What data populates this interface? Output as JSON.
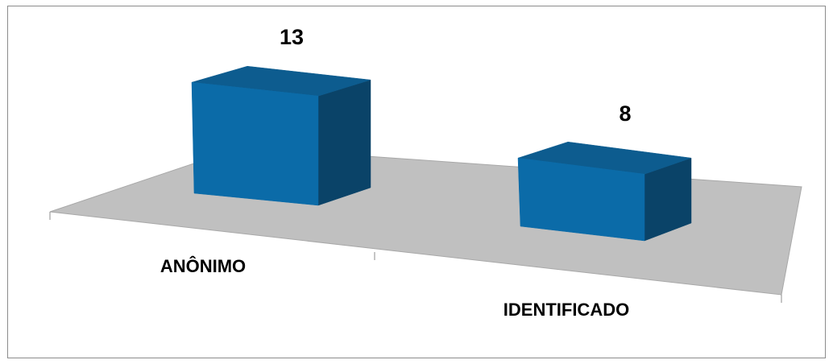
{
  "chart_data": {
    "type": "bar",
    "style": "3d-column",
    "categories": [
      "ANÔNIMO",
      "IDENTIFICADO"
    ],
    "values": [
      13,
      8
    ],
    "title": "",
    "xlabel": "",
    "ylabel": "",
    "ylim": [
      0,
      14
    ],
    "grid": false,
    "legend": "none",
    "data_labels": [
      "13",
      "8"
    ],
    "colors": {
      "bar_front": "#0b6ba8",
      "bar_top": "#0d5c8f",
      "bar_side": "#0a4368",
      "floor": "#c0c0c0",
      "border": "#8c8c8c"
    }
  }
}
